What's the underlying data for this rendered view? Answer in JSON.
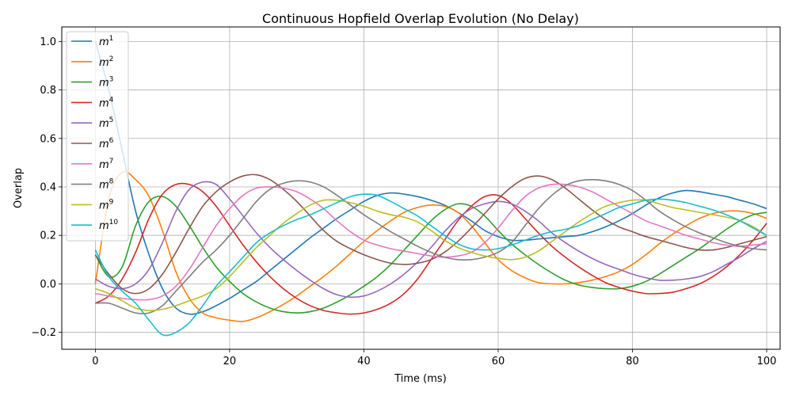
{
  "chart_data": {
    "type": "line",
    "title": "Continuous Hopfield Overlap Evolution (No Delay)",
    "xlabel": "Time (ms)",
    "ylabel": "Overlap",
    "xlim": [
      -5,
      102
    ],
    "ylim": [
      -0.27,
      1.06
    ],
    "xticks": [
      0,
      20,
      40,
      60,
      80,
      100
    ],
    "yticks": [
      -0.2,
      0.0,
      0.2,
      0.4,
      0.6,
      0.8,
      1.0
    ],
    "xtick_labels": [
      "0",
      "20",
      "40",
      "60",
      "80",
      "100"
    ],
    "ytick_labels": [
      "−0.2",
      "0.0",
      "0.2",
      "0.4",
      "0.6",
      "0.8",
      "1.0"
    ],
    "grid": true,
    "legend_position": "upper-left",
    "series": [
      {
        "name": "m",
        "sup": "1",
        "color": "#1f77b4",
        "x": [
          0,
          2,
          4,
          6,
          8,
          10,
          12,
          14,
          16,
          18,
          20,
          22,
          24,
          26,
          28,
          30,
          32,
          34,
          36,
          38,
          40,
          42,
          44,
          46,
          48,
          50,
          52,
          54,
          56,
          58,
          60,
          62,
          64,
          66,
          68,
          70,
          72,
          74,
          76,
          78,
          80,
          82,
          84,
          86,
          88,
          90,
          92,
          94,
          96,
          98,
          100
        ],
        "y": [
          1.0,
          0.8,
          0.55,
          0.3,
          0.12,
          -0.02,
          -0.1,
          -0.125,
          -0.115,
          -0.09,
          -0.06,
          -0.025,
          0.01,
          0.055,
          0.1,
          0.145,
          0.19,
          0.23,
          0.27,
          0.305,
          0.34,
          0.365,
          0.375,
          0.37,
          0.36,
          0.345,
          0.325,
          0.295,
          0.26,
          0.22,
          0.195,
          0.18,
          0.18,
          0.185,
          0.19,
          0.195,
          0.2,
          0.215,
          0.235,
          0.26,
          0.29,
          0.325,
          0.355,
          0.375,
          0.385,
          0.38,
          0.37,
          0.36,
          0.345,
          0.33,
          0.31
        ]
      },
      {
        "name": "m",
        "sup": "2",
        "color": "#ff7f0e",
        "x": [
          0,
          2,
          4,
          6,
          8,
          10,
          12,
          14,
          16,
          18,
          20,
          22,
          24,
          26,
          28,
          30,
          32,
          34,
          36,
          38,
          40,
          42,
          44,
          46,
          48,
          50,
          52,
          54,
          56,
          58,
          60,
          62,
          64,
          66,
          68,
          70,
          72,
          74,
          76,
          78,
          80,
          82,
          84,
          86,
          88,
          90,
          92,
          94,
          96,
          98,
          100
        ],
        "y": [
          0.0,
          0.35,
          0.46,
          0.43,
          0.36,
          0.22,
          0.05,
          -0.06,
          -0.12,
          -0.14,
          -0.15,
          -0.155,
          -0.14,
          -0.115,
          -0.085,
          -0.05,
          -0.01,
          0.03,
          0.075,
          0.125,
          0.175,
          0.22,
          0.26,
          0.295,
          0.315,
          0.325,
          0.32,
          0.295,
          0.24,
          0.17,
          0.1,
          0.055,
          0.025,
          0.005,
          0.0,
          0.0,
          0.005,
          0.015,
          0.03,
          0.05,
          0.08,
          0.12,
          0.165,
          0.205,
          0.24,
          0.27,
          0.29,
          0.3,
          0.3,
          0.29,
          0.27
        ]
      },
      {
        "name": "m",
        "sup": "3",
        "color": "#2ca02c",
        "x": [
          0,
          2,
          4,
          6,
          8,
          10,
          12,
          14,
          16,
          18,
          20,
          22,
          24,
          26,
          28,
          30,
          32,
          34,
          36,
          38,
          40,
          42,
          44,
          46,
          48,
          50,
          52,
          54,
          56,
          58,
          60,
          62,
          64,
          66,
          68,
          70,
          72,
          74,
          76,
          78,
          80,
          82,
          84,
          86,
          88,
          90,
          92,
          94,
          96,
          98,
          100
        ],
        "y": [
          0.12,
          0.03,
          0.07,
          0.24,
          0.34,
          0.36,
          0.32,
          0.24,
          0.15,
          0.07,
          0.01,
          -0.04,
          -0.075,
          -0.1,
          -0.115,
          -0.12,
          -0.115,
          -0.1,
          -0.075,
          -0.045,
          -0.01,
          0.03,
          0.08,
          0.14,
          0.2,
          0.26,
          0.305,
          0.33,
          0.32,
          0.28,
          0.22,
          0.165,
          0.12,
          0.08,
          0.045,
          0.015,
          -0.005,
          -0.015,
          -0.02,
          -0.02,
          -0.01,
          0.01,
          0.04,
          0.075,
          0.11,
          0.145,
          0.185,
          0.225,
          0.26,
          0.285,
          0.295
        ]
      },
      {
        "name": "m",
        "sup": "4",
        "color": "#d62728",
        "x": [
          0,
          2,
          4,
          6,
          8,
          10,
          12,
          14,
          16,
          18,
          20,
          22,
          24,
          26,
          28,
          30,
          32,
          34,
          36,
          38,
          40,
          42,
          44,
          46,
          48,
          50,
          52,
          54,
          56,
          58,
          60,
          62,
          64,
          66,
          68,
          70,
          72,
          74,
          76,
          78,
          80,
          82,
          84,
          86,
          88,
          90,
          92,
          94,
          96,
          98,
          100
        ],
        "y": [
          -0.08,
          -0.05,
          0.02,
          0.13,
          0.27,
          0.37,
          0.41,
          0.41,
          0.38,
          0.32,
          0.24,
          0.16,
          0.09,
          0.03,
          -0.02,
          -0.06,
          -0.09,
          -0.11,
          -0.12,
          -0.125,
          -0.12,
          -0.105,
          -0.08,
          -0.04,
          0.02,
          0.1,
          0.18,
          0.26,
          0.32,
          0.36,
          0.365,
          0.33,
          0.27,
          0.21,
          0.155,
          0.11,
          0.07,
          0.035,
          0.005,
          -0.015,
          -0.03,
          -0.04,
          -0.04,
          -0.035,
          -0.02,
          0.0,
          0.03,
          0.07,
          0.12,
          0.18,
          0.25
        ]
      },
      {
        "name": "m",
        "sup": "5",
        "color": "#9467bd",
        "x": [
          0,
          2,
          4,
          6,
          8,
          10,
          12,
          14,
          16,
          18,
          20,
          22,
          24,
          26,
          28,
          30,
          32,
          34,
          36,
          38,
          40,
          42,
          44,
          46,
          48,
          50,
          52,
          54,
          56,
          58,
          60,
          62,
          64,
          66,
          68,
          70,
          72,
          74,
          76,
          78,
          80,
          82,
          84,
          86,
          88,
          90,
          92,
          94,
          96,
          98,
          100
        ],
        "y": [
          0.02,
          -0.01,
          -0.02,
          0.0,
          0.06,
          0.17,
          0.3,
          0.39,
          0.42,
          0.41,
          0.35,
          0.28,
          0.21,
          0.15,
          0.1,
          0.055,
          0.015,
          -0.02,
          -0.045,
          -0.055,
          -0.05,
          -0.03,
          0.0,
          0.04,
          0.09,
          0.15,
          0.215,
          0.27,
          0.31,
          0.33,
          0.34,
          0.33,
          0.3,
          0.26,
          0.21,
          0.17,
          0.135,
          0.105,
          0.08,
          0.06,
          0.04,
          0.025,
          0.015,
          0.015,
          0.02,
          0.03,
          0.05,
          0.08,
          0.11,
          0.145,
          0.175
        ]
      },
      {
        "name": "m",
        "sup": "6",
        "color": "#8c564b",
        "x": [
          0,
          2,
          4,
          6,
          8,
          10,
          12,
          14,
          16,
          18,
          20,
          22,
          24,
          26,
          28,
          30,
          32,
          34,
          36,
          38,
          40,
          42,
          44,
          46,
          48,
          50,
          52,
          54,
          56,
          58,
          60,
          62,
          64,
          66,
          68,
          70,
          72,
          74,
          76,
          78,
          80,
          82,
          84,
          86,
          88,
          90,
          92,
          94,
          96,
          98,
          100
        ],
        "y": [
          0.12,
          0.04,
          -0.02,
          -0.04,
          -0.02,
          0.04,
          0.13,
          0.23,
          0.32,
          0.38,
          0.42,
          0.445,
          0.45,
          0.43,
          0.39,
          0.34,
          0.28,
          0.22,
          0.175,
          0.145,
          0.12,
          0.1,
          0.085,
          0.08,
          0.085,
          0.1,
          0.13,
          0.175,
          0.23,
          0.29,
          0.35,
          0.4,
          0.435,
          0.445,
          0.43,
          0.395,
          0.35,
          0.305,
          0.265,
          0.235,
          0.215,
          0.195,
          0.18,
          0.165,
          0.15,
          0.14,
          0.14,
          0.15,
          0.165,
          0.18,
          0.195
        ]
      },
      {
        "name": "m",
        "sup": "7",
        "color": "#e377c2",
        "x": [
          0,
          2,
          4,
          6,
          8,
          10,
          12,
          14,
          16,
          18,
          20,
          22,
          24,
          26,
          28,
          30,
          32,
          34,
          36,
          38,
          40,
          42,
          44,
          46,
          48,
          50,
          52,
          54,
          56,
          58,
          60,
          62,
          64,
          66,
          68,
          70,
          72,
          74,
          76,
          78,
          80,
          82,
          84,
          86,
          88,
          90,
          92,
          94,
          96,
          98,
          100
        ],
        "y": [
          -0.04,
          -0.05,
          -0.06,
          -0.065,
          -0.065,
          -0.05,
          -0.01,
          0.06,
          0.15,
          0.24,
          0.31,
          0.365,
          0.395,
          0.4,
          0.395,
          0.38,
          0.35,
          0.31,
          0.26,
          0.215,
          0.18,
          0.16,
          0.145,
          0.135,
          0.125,
          0.115,
          0.11,
          0.115,
          0.13,
          0.17,
          0.23,
          0.3,
          0.36,
          0.395,
          0.41,
          0.41,
          0.4,
          0.38,
          0.35,
          0.32,
          0.29,
          0.26,
          0.24,
          0.22,
          0.2,
          0.185,
          0.17,
          0.16,
          0.155,
          0.16,
          0.165
        ]
      },
      {
        "name": "m",
        "sup": "8",
        "color": "#7f7f7f",
        "x": [
          0,
          2,
          4,
          6,
          8,
          10,
          12,
          14,
          16,
          18,
          20,
          22,
          24,
          26,
          28,
          30,
          32,
          34,
          36,
          38,
          40,
          42,
          44,
          46,
          48,
          50,
          52,
          54,
          56,
          58,
          60,
          62,
          64,
          66,
          68,
          70,
          72,
          74,
          76,
          78,
          80,
          82,
          84,
          86,
          88,
          90,
          92,
          94,
          96,
          98,
          100
        ],
        "y": [
          -0.08,
          -0.08,
          -0.1,
          -0.12,
          -0.12,
          -0.09,
          -0.03,
          0.03,
          0.09,
          0.14,
          0.2,
          0.27,
          0.34,
          0.39,
          0.415,
          0.425,
          0.42,
          0.4,
          0.365,
          0.325,
          0.285,
          0.25,
          0.215,
          0.185,
          0.155,
          0.13,
          0.11,
          0.1,
          0.1,
          0.11,
          0.13,
          0.17,
          0.24,
          0.31,
          0.365,
          0.405,
          0.425,
          0.43,
          0.425,
          0.41,
          0.385,
          0.345,
          0.3,
          0.265,
          0.235,
          0.21,
          0.19,
          0.17,
          0.155,
          0.145,
          0.14
        ]
      },
      {
        "name": "m",
        "sup": "9",
        "color": "#bcbd22",
        "x": [
          0,
          2,
          4,
          6,
          8,
          10,
          12,
          14,
          16,
          18,
          20,
          22,
          24,
          26,
          28,
          30,
          32,
          34,
          36,
          38,
          40,
          42,
          44,
          46,
          48,
          50,
          52,
          54,
          56,
          58,
          60,
          62,
          64,
          66,
          68,
          70,
          72,
          74,
          76,
          78,
          80,
          82,
          84,
          86,
          88,
          90,
          92,
          94,
          96,
          98,
          100
        ],
        "y": [
          -0.02,
          -0.04,
          -0.07,
          -0.1,
          -0.11,
          -0.105,
          -0.09,
          -0.07,
          -0.05,
          -0.02,
          0.03,
          0.09,
          0.15,
          0.2,
          0.25,
          0.29,
          0.325,
          0.345,
          0.345,
          0.335,
          0.32,
          0.3,
          0.285,
          0.275,
          0.255,
          0.22,
          0.18,
          0.15,
          0.13,
          0.115,
          0.105,
          0.1,
          0.11,
          0.135,
          0.175,
          0.215,
          0.255,
          0.29,
          0.32,
          0.335,
          0.345,
          0.345,
          0.33,
          0.315,
          0.305,
          0.295,
          0.285,
          0.275,
          0.26,
          0.235,
          0.2
        ]
      },
      {
        "name": "m",
        "sup": "10",
        "color": "#17becf",
        "x": [
          0,
          2,
          4,
          6,
          8,
          10,
          12,
          14,
          16,
          18,
          20,
          22,
          24,
          26,
          28,
          30,
          32,
          34,
          36,
          38,
          40,
          42,
          44,
          46,
          48,
          50,
          52,
          54,
          56,
          58,
          60,
          62,
          64,
          66,
          68,
          70,
          72,
          74,
          76,
          78,
          80,
          82,
          84,
          86,
          88,
          90,
          92,
          94,
          96,
          98,
          100
        ],
        "y": [
          0.14,
          0.03,
          -0.03,
          -0.08,
          -0.15,
          -0.21,
          -0.2,
          -0.16,
          -0.09,
          -0.01,
          0.05,
          0.11,
          0.17,
          0.21,
          0.24,
          0.265,
          0.285,
          0.31,
          0.335,
          0.36,
          0.37,
          0.365,
          0.34,
          0.31,
          0.28,
          0.24,
          0.2,
          0.165,
          0.145,
          0.14,
          0.145,
          0.16,
          0.18,
          0.2,
          0.215,
          0.225,
          0.24,
          0.265,
          0.29,
          0.315,
          0.33,
          0.345,
          0.35,
          0.345,
          0.335,
          0.32,
          0.305,
          0.285,
          0.26,
          0.23,
          0.2
        ]
      }
    ]
  }
}
